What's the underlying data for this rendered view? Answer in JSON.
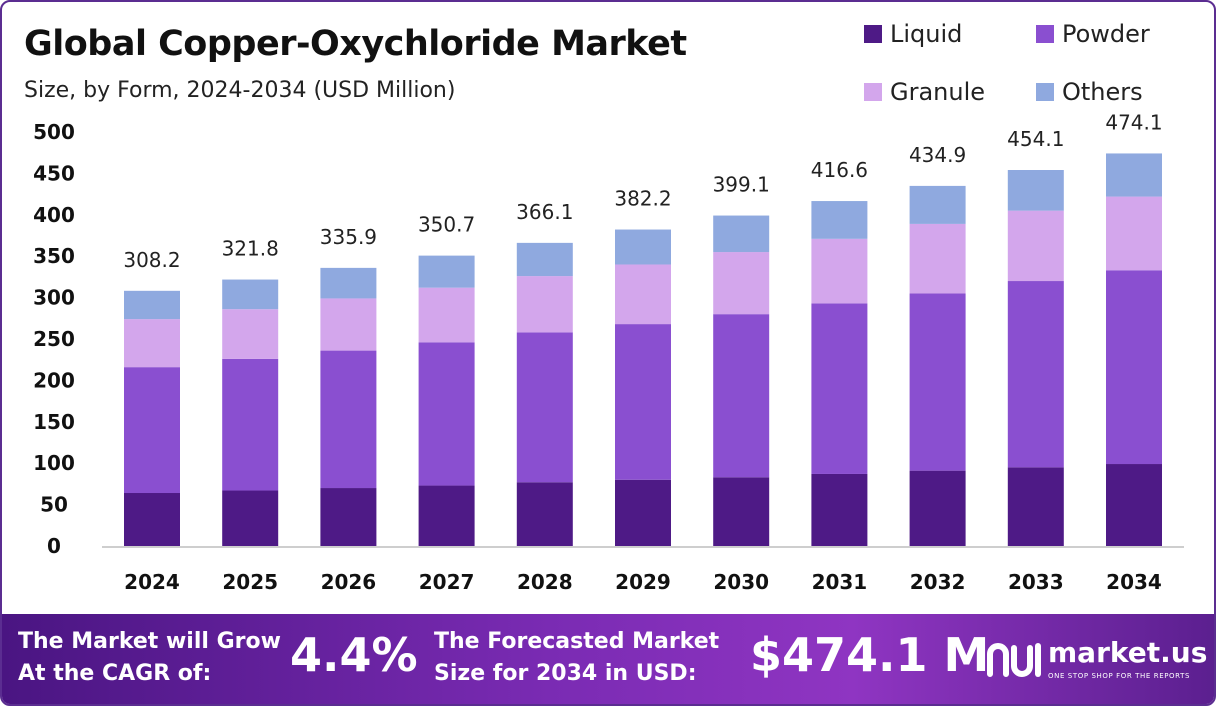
{
  "title": "Global Copper-Oxychloride Market",
  "subtitle": "Size, by Form, 2024-2034 (USD Million)",
  "colors": {
    "Liquid": "#4e1a86",
    "Powder": "#8a4fd0",
    "Granule": "#d3a6ec",
    "Others": "#8fa9df"
  },
  "chart_data": {
    "type": "bar",
    "stacked": true,
    "categories": [
      "2024",
      "2025",
      "2026",
      "2027",
      "2028",
      "2029",
      "2030",
      "2031",
      "2032",
      "2033",
      "2034"
    ],
    "series": [
      {
        "name": "Liquid",
        "values": [
          64,
          67,
          70,
          73,
          77,
          80,
          83,
          87,
          91,
          95,
          99
        ]
      },
      {
        "name": "Powder",
        "values": [
          152,
          159,
          166,
          173,
          181,
          188,
          197,
          206,
          214,
          225,
          234
        ]
      },
      {
        "name": "Granule",
        "values": [
          58,
          60,
          63,
          66,
          68,
          72,
          75,
          78,
          84,
          85,
          89
        ]
      },
      {
        "name": "Others",
        "values": [
          34.2,
          35.8,
          36.9,
          38.7,
          40.1,
          42.2,
          44.1,
          45.6,
          45.9,
          49.1,
          52.1
        ]
      }
    ],
    "totals": [
      "308.2",
      "321.8",
      "335.9",
      "350.7",
      "366.1",
      "382.2",
      "399.1",
      "416.6",
      "434.9",
      "454.1",
      "474.1"
    ],
    "yticks": [
      "500",
      "450",
      "400",
      "350",
      "300",
      "250",
      "200",
      "150",
      "100",
      "50",
      "0"
    ],
    "ylim": [
      0,
      500
    ],
    "grid": false,
    "legend": "top-right"
  },
  "footer": {
    "cagr_label_line1": "The Market will Grow",
    "cagr_label_line2": "At the CAGR of:",
    "cagr_value": "4.4%",
    "forecast_label_line1": "The Forecasted Market",
    "forecast_label_line2": "Size for 2034 in USD:",
    "forecast_value": "$474.1 M",
    "brand_name": "market.us",
    "brand_tagline": "ONE STOP SHOP FOR THE REPORTS"
  }
}
